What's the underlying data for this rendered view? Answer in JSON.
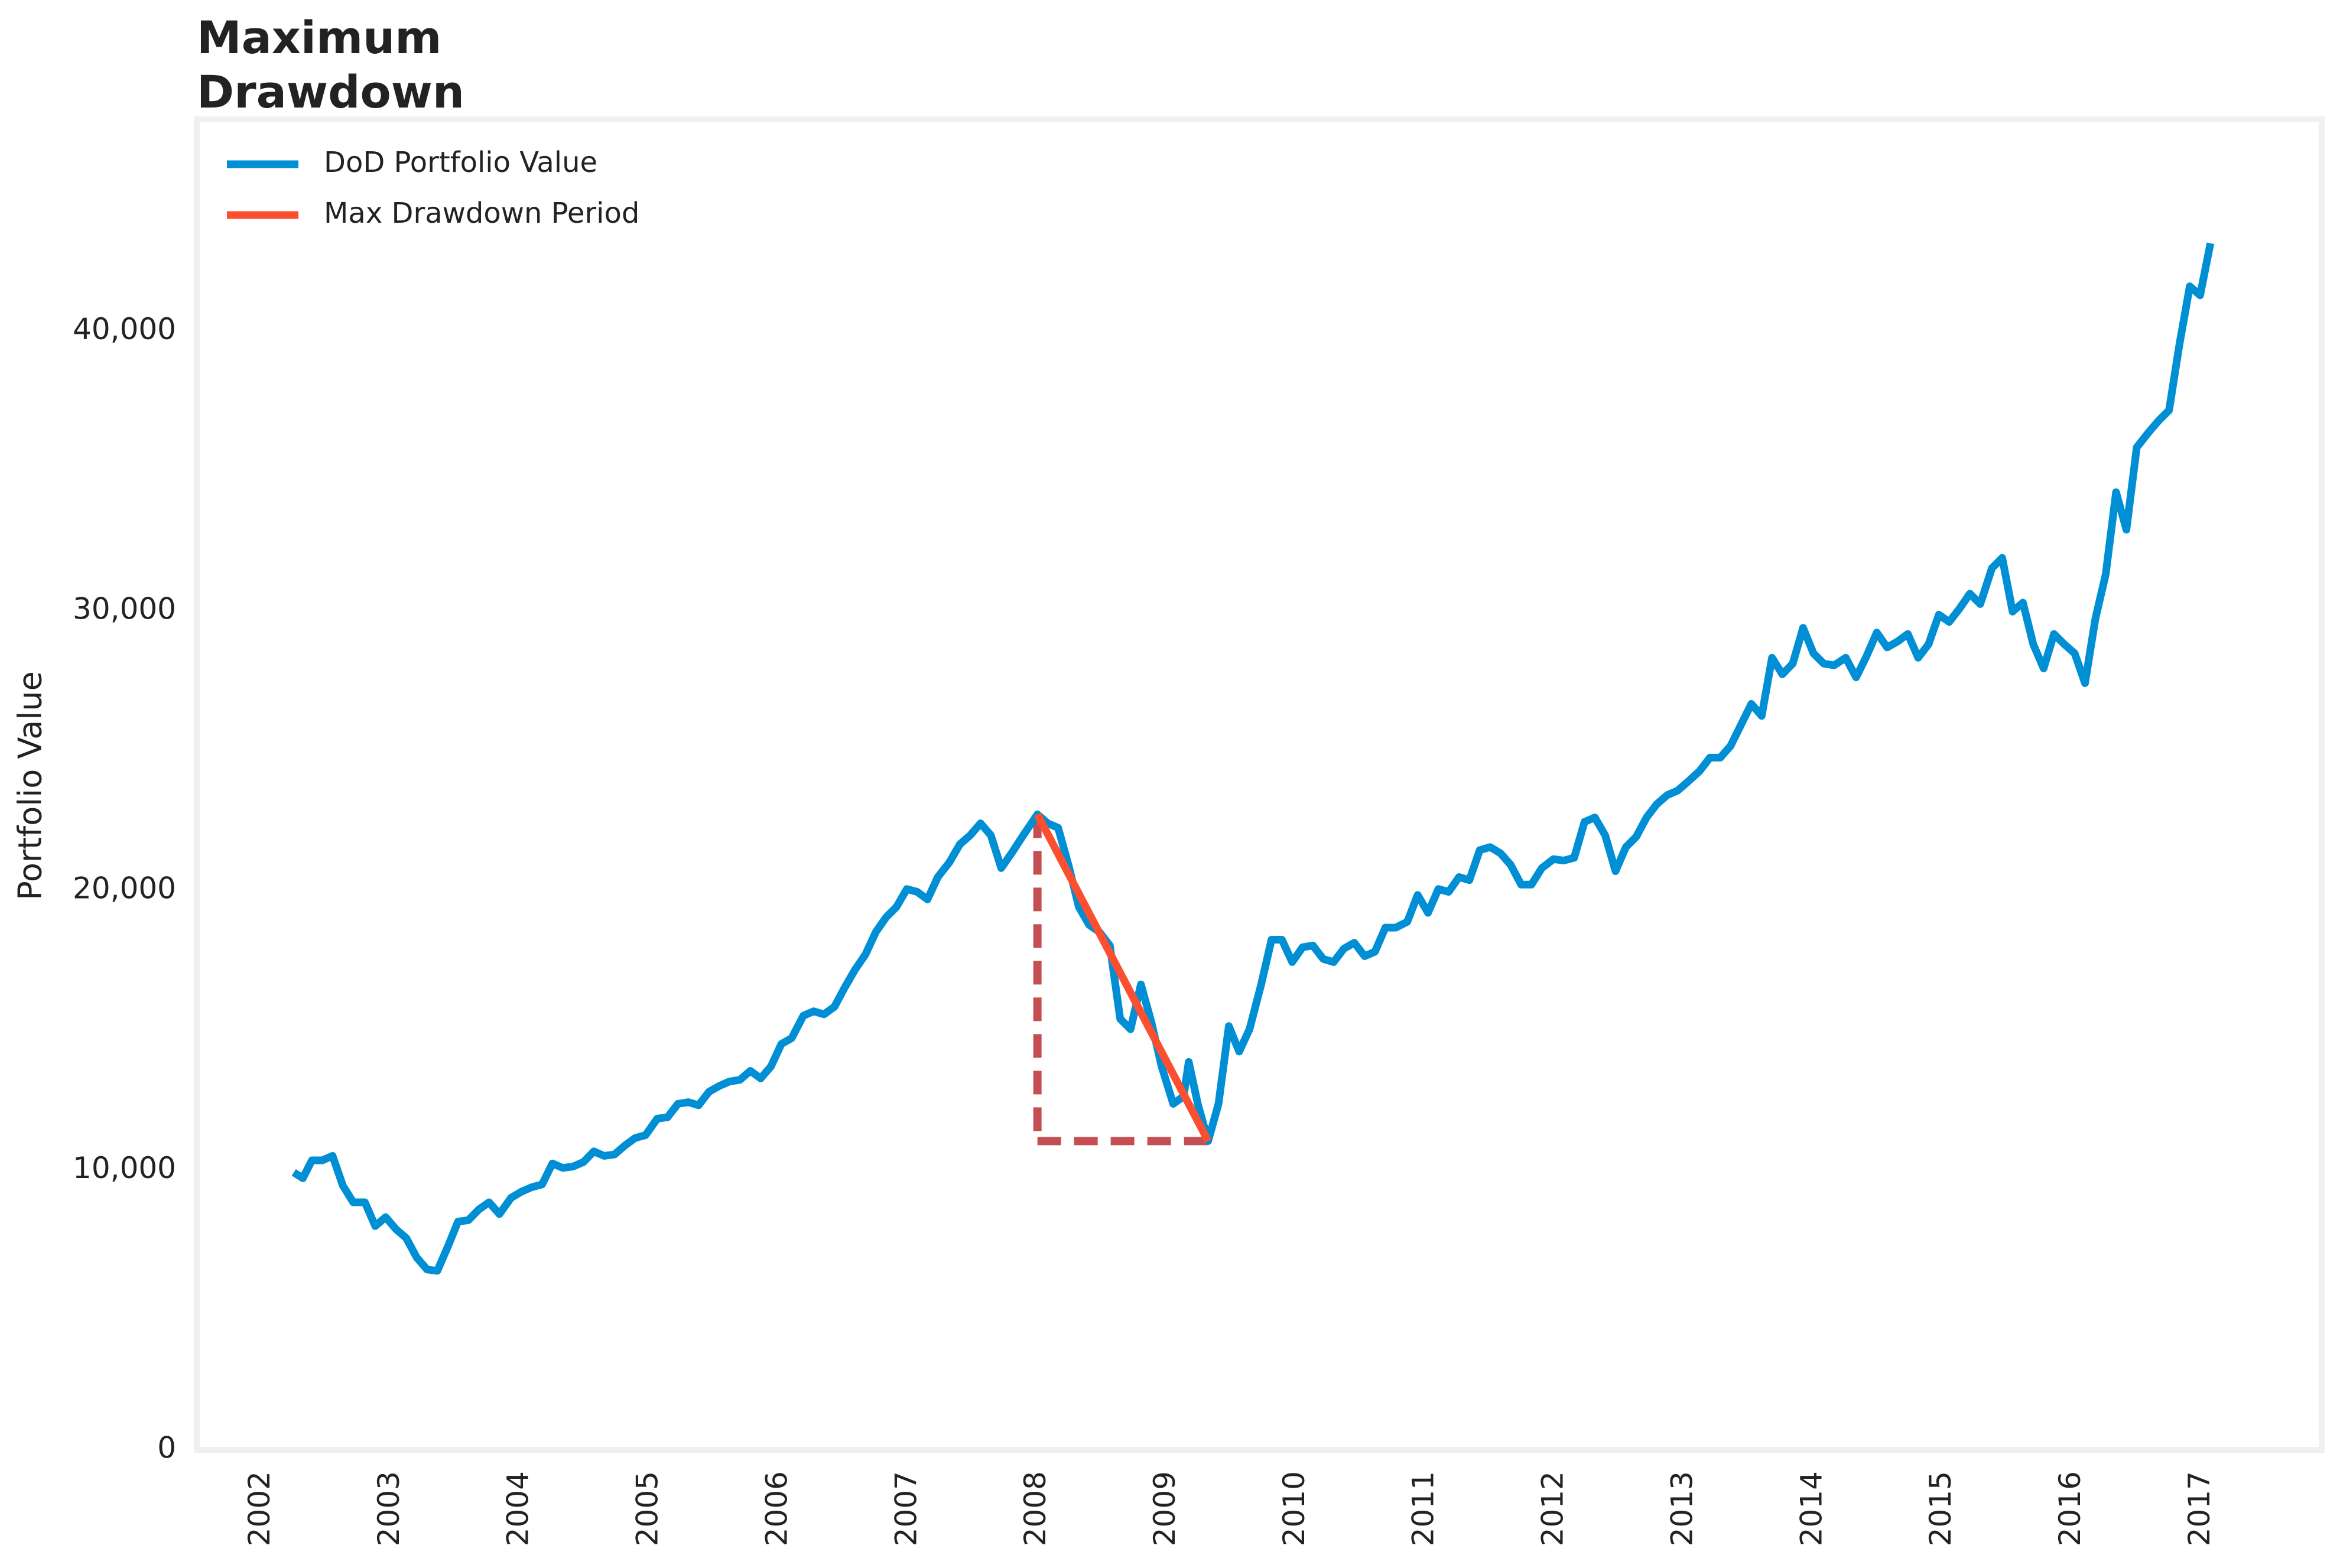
{
  "chart_data": {
    "type": "line",
    "title": "Maximum\nDrawdown",
    "y_label": "Portfolio Value",
    "xlim": [
      2001.5,
      2017.93
    ],
    "ylim": [
      0,
      47570
    ],
    "xticks": [
      2002,
      2003,
      2004,
      2005,
      2006,
      2007,
      2008,
      2009,
      2010,
      2011,
      2012,
      2013,
      2014,
      2015,
      2016,
      2017
    ],
    "yticks": [
      0,
      {
        "value": 10000,
        "label": "10,000"
      },
      {
        "value": 20000,
        "label": "20,000"
      },
      {
        "value": 30000,
        "label": "30,000"
      },
      {
        "value": 40000,
        "label": "40,000"
      }
    ],
    "grid": false,
    "legend": "upper left",
    "series": [
      {
        "name": "DoD Portfolio Value",
        "color": "#008fd5",
        "x": [
          2002.25,
          2002.32,
          2002.39,
          2002.47,
          2002.55,
          2002.63,
          2002.71,
          2002.8,
          2002.88,
          2002.96,
          2003.04,
          2003.12,
          2003.2,
          2003.28,
          2003.36,
          2003.44,
          2003.52,
          2003.6,
          2003.68,
          2003.76,
          2003.84,
          2003.93,
          2004.01,
          2004.09,
          2004.17,
          2004.25,
          2004.33,
          2004.41,
          2004.49,
          2004.57,
          2004.65,
          2004.73,
          2004.81,
          2004.89,
          2004.97,
          2005.06,
          2005.14,
          2005.22,
          2005.3,
          2005.38,
          2005.46,
          2005.54,
          2005.62,
          2005.7,
          2005.78,
          2005.86,
          2005.94,
          2006.02,
          2006.1,
          2006.19,
          2006.27,
          2006.35,
          2006.43,
          2006.51,
          2006.59,
          2006.67,
          2006.75,
          2006.83,
          2006.91,
          2006.99,
          2007.07,
          2007.15,
          2007.23,
          2007.32,
          2007.4,
          2007.48,
          2007.56,
          2007.64,
          2007.72,
          2007.8,
          2007.89,
          2008.0,
          2008.08,
          2008.16,
          2008.24,
          2008.32,
          2008.4,
          2008.48,
          2008.56,
          2008.64,
          2008.72,
          2008.8,
          2008.88,
          2008.96,
          2009.05,
          2009.13,
          2009.17,
          2009.24,
          2009.32,
          2009.4,
          2009.48,
          2009.56,
          2009.64,
          2009.73,
          2009.81,
          2009.89,
          2009.97,
          2010.05,
          2010.13,
          2010.21,
          2010.29,
          2010.37,
          2010.45,
          2010.53,
          2010.61,
          2010.69,
          2010.77,
          2010.86,
          2010.94,
          2011.02,
          2011.1,
          2011.18,
          2011.26,
          2011.34,
          2011.42,
          2011.5,
          2011.58,
          2011.66,
          2011.74,
          2011.82,
          2011.9,
          2011.99,
          2012.07,
          2012.15,
          2012.23,
          2012.31,
          2012.39,
          2012.47,
          2012.55,
          2012.63,
          2012.71,
          2012.79,
          2012.87,
          2012.95,
          2013.03,
          2013.12,
          2013.2,
          2013.28,
          2013.36,
          2013.44,
          2013.52,
          2013.6,
          2013.68,
          2013.76,
          2013.84,
          2013.92,
          2014.0,
          2014.08,
          2014.16,
          2014.25,
          2014.33,
          2014.41,
          2014.49,
          2014.57,
          2014.65,
          2014.73,
          2014.81,
          2014.89,
          2014.97,
          2015.05,
          2015.13,
          2015.21,
          2015.29,
          2015.38,
          2015.46,
          2015.54,
          2015.62,
          2015.7,
          2015.78,
          2015.86,
          2015.94,
          2016.02,
          2016.1,
          2016.18,
          2016.26,
          2016.34,
          2016.42,
          2016.5,
          2016.59,
          2016.67,
          2016.75,
          2016.83,
          2016.91,
          2016.99,
          2017.07
        ],
        "values": [
          9920,
          9710,
          10350,
          10350,
          10510,
          9440,
          8850,
          8850,
          8000,
          8320,
          7890,
          7570,
          6880,
          6450,
          6400,
          7250,
          8160,
          8210,
          8590,
          8850,
          8430,
          9010,
          9230,
          9390,
          9490,
          10240,
          10080,
          10130,
          10290,
          10670,
          10510,
          10560,
          10880,
          11150,
          11250,
          11840,
          11890,
          12370,
          12430,
          12320,
          12800,
          13010,
          13170,
          13230,
          13550,
          13280,
          13710,
          14510,
          14720,
          15520,
          15680,
          15570,
          15840,
          16530,
          17170,
          17710,
          18510,
          19040,
          19410,
          20050,
          19950,
          19680,
          20480,
          21010,
          21650,
          21970,
          22400,
          21970,
          20800,
          21330,
          21970,
          22720,
          22400,
          22240,
          20910,
          19410,
          18770,
          18510,
          18030,
          15410,
          15040,
          16640,
          15310,
          13710,
          12370,
          12640,
          13870,
          12370,
          11040,
          12370,
          15150,
          14240,
          15040,
          16640,
          18240,
          18240,
          17440,
          17970,
          18030,
          17550,
          17440,
          17920,
          18130,
          17650,
          17810,
          18670,
          18670,
          18880,
          19840,
          19200,
          20050,
          19950,
          20480,
          20370,
          21440,
          21550,
          21330,
          20910,
          20210,
          20210,
          20800,
          21120,
          21070,
          21170,
          22450,
          22610,
          21970,
          20690,
          21550,
          21920,
          22610,
          23090,
          23410,
          23570,
          23890,
          24270,
          24750,
          24750,
          25170,
          25920,
          26670,
          26240,
          28320,
          27730,
          28110,
          29390,
          28480,
          28110,
          28050,
          28320,
          27620,
          28370,
          29220,
          28690,
          28900,
          29170,
          28320,
          28800,
          29860,
          29600,
          30080,
          30610,
          30240,
          31520,
          31890,
          29970,
          30290,
          28800,
          27940,
          29170,
          28800,
          28480,
          27410,
          29710,
          31300,
          34240,
          32900,
          35840,
          36370,
          36800,
          37170,
          39520,
          41600,
          41280,
          43140
        ]
      },
      {
        "name": "Max Drawdown Period",
        "color": "#fc4f30",
        "x": [
          2008.0,
          2009.32
        ],
        "values": [
          22720,
          11040
        ]
      }
    ]
  }
}
